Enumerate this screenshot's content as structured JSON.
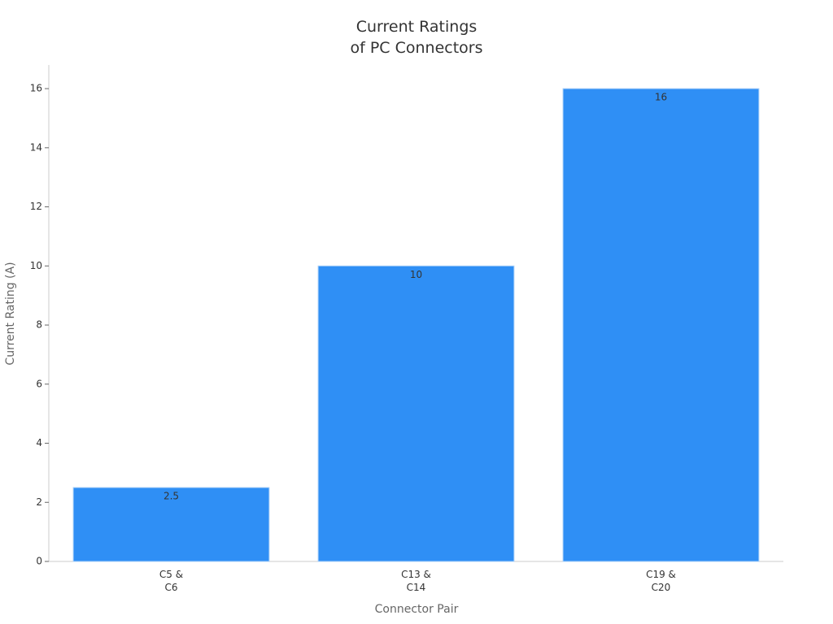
{
  "chart_data": {
    "type": "bar",
    "title": "Current Ratings\nof PC Connectors",
    "x_label": "Connector Pair",
    "y_label": "Current Rating (A)",
    "categories": [
      "C5 &\nC6",
      "C13 &\nC14",
      "C19 &\nC20"
    ],
    "values": [
      2.5,
      10,
      16
    ],
    "color": "#2f8ff5",
    "ylim": [
      0,
      16.8
    ],
    "yticks": [
      0,
      2,
      4,
      6,
      8,
      10,
      12,
      14,
      16
    ],
    "grid": false
  }
}
